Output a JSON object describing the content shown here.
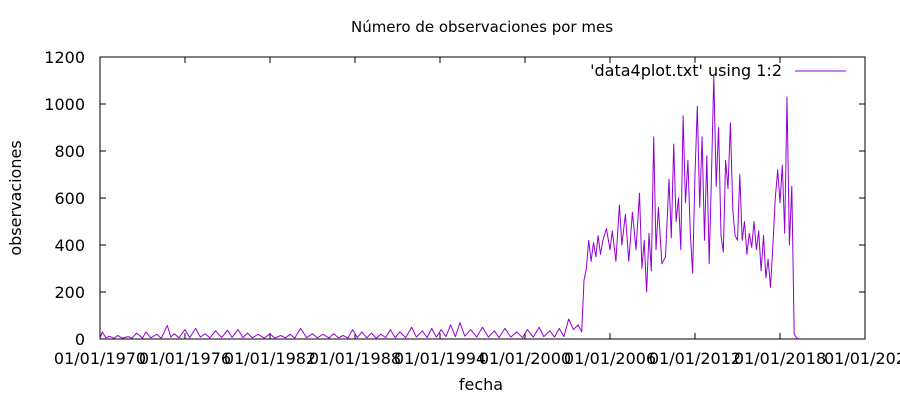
{
  "chart_data": {
    "type": "line",
    "title": "Número de observaciones por mes",
    "xlabel": "fecha",
    "ylabel": "observaciones",
    "x_type": "date",
    "xlim": [
      "1970-01-01",
      "2024-01-01"
    ],
    "ylim": [
      0,
      1200
    ],
    "xticks": [
      "01/01/1970",
      "01/01/1976",
      "01/01/1982",
      "01/01/1988",
      "01/01/1994",
      "01/01/2000",
      "01/01/2006",
      "01/01/2012",
      "01/01/2018",
      "01/01/202"
    ],
    "yticks": [
      "0",
      "200",
      "400",
      "600",
      "800",
      "1000",
      "1200"
    ],
    "legend_position": "top-right",
    "grid": false,
    "series_color": "#9400d3",
    "series": [
      {
        "name": "'data4plot.txt' using 1:2",
        "points": [
          [
            "1970-01-01",
            2
          ],
          [
            "1970-03-01",
            30
          ],
          [
            "1970-06-01",
            5
          ],
          [
            "1970-09-01",
            12
          ],
          [
            "1971-01-01",
            3
          ],
          [
            "1971-04-01",
            15
          ],
          [
            "1971-08-01",
            4
          ],
          [
            "1972-01-01",
            10
          ],
          [
            "1972-04-01",
            3
          ],
          [
            "1972-08-01",
            25
          ],
          [
            "1973-01-01",
            4
          ],
          [
            "1973-04-01",
            30
          ],
          [
            "1973-08-01",
            5
          ],
          [
            "1974-01-01",
            20
          ],
          [
            "1974-05-01",
            3
          ],
          [
            "1974-10-01",
            58
          ],
          [
            "1975-01-01",
            8
          ],
          [
            "1975-04-01",
            22
          ],
          [
            "1975-08-01",
            5
          ],
          [
            "1976-01-01",
            40
          ],
          [
            "1976-05-01",
            6
          ],
          [
            "1976-10-01",
            45
          ],
          [
            "1977-02-01",
            8
          ],
          [
            "1977-06-01",
            22
          ],
          [
            "1977-10-01",
            5
          ],
          [
            "1978-03-01",
            35
          ],
          [
            "1978-08-01",
            6
          ],
          [
            "1979-01-01",
            38
          ],
          [
            "1979-05-01",
            7
          ],
          [
            "1979-10-01",
            40
          ],
          [
            "1980-02-01",
            6
          ],
          [
            "1980-06-01",
            25
          ],
          [
            "1980-10-01",
            5
          ],
          [
            "1981-03-01",
            20
          ],
          [
            "1981-08-01",
            4
          ],
          [
            "1982-01-01",
            22
          ],
          [
            "1982-05-01",
            4
          ],
          [
            "1982-10-01",
            15
          ],
          [
            "1983-02-01",
            5
          ],
          [
            "1983-06-01",
            20
          ],
          [
            "1983-10-01",
            4
          ],
          [
            "1984-03-01",
            45
          ],
          [
            "1984-08-01",
            6
          ],
          [
            "1985-01-01",
            22
          ],
          [
            "1985-05-01",
            5
          ],
          [
            "1985-10-01",
            20
          ],
          [
            "1986-03-01",
            4
          ],
          [
            "1986-07-01",
            22
          ],
          [
            "1986-11-01",
            5
          ],
          [
            "1987-03-01",
            15
          ],
          [
            "1987-07-01",
            4
          ],
          [
            "1987-11-01",
            40
          ],
          [
            "1988-03-01",
            6
          ],
          [
            "1988-07-01",
            30
          ],
          [
            "1988-11-01",
            5
          ],
          [
            "1989-03-01",
            25
          ],
          [
            "1989-07-01",
            4
          ],
          [
            "1989-11-01",
            20
          ],
          [
            "1990-03-01",
            6
          ],
          [
            "1990-07-01",
            40
          ],
          [
            "1990-11-01",
            5
          ],
          [
            "1991-03-01",
            30
          ],
          [
            "1991-08-01",
            6
          ],
          [
            "1992-01-01",
            50
          ],
          [
            "1992-05-01",
            8
          ],
          [
            "1992-10-01",
            35
          ],
          [
            "1993-02-01",
            6
          ],
          [
            "1993-06-01",
            45
          ],
          [
            "1993-10-01",
            8
          ],
          [
            "1994-02-01",
            40
          ],
          [
            "1994-06-01",
            10
          ],
          [
            "1994-10-01",
            60
          ],
          [
            "1995-02-01",
            10
          ],
          [
            "1995-06-01",
            70
          ],
          [
            "1995-10-01",
            12
          ],
          [
            "1996-03-01",
            40
          ],
          [
            "1996-08-01",
            8
          ],
          [
            "1997-01-01",
            50
          ],
          [
            "1997-06-01",
            8
          ],
          [
            "1997-11-01",
            35
          ],
          [
            "1998-03-01",
            6
          ],
          [
            "1998-08-01",
            45
          ],
          [
            "1999-01-01",
            8
          ],
          [
            "1999-06-01",
            30
          ],
          [
            "1999-11-01",
            5
          ],
          [
            "2000-03-01",
            40
          ],
          [
            "2000-08-01",
            8
          ],
          [
            "2001-01-01",
            50
          ],
          [
            "2001-05-01",
            10
          ],
          [
            "2001-10-01",
            35
          ],
          [
            "2002-02-01",
            8
          ],
          [
            "2002-06-01",
            45
          ],
          [
            "2002-10-01",
            10
          ],
          [
            "2003-02-01",
            85
          ],
          [
            "2003-06-01",
            40
          ],
          [
            "2003-10-01",
            60
          ],
          [
            "2004-01-01",
            30
          ],
          [
            "2004-03-01",
            250
          ],
          [
            "2004-05-01",
            300
          ],
          [
            "2004-07-01",
            420
          ],
          [
            "2004-09-01",
            330
          ],
          [
            "2004-11-01",
            410
          ],
          [
            "2005-01-01",
            350
          ],
          [
            "2005-03-01",
            440
          ],
          [
            "2005-05-01",
            360
          ],
          [
            "2005-07-01",
            420
          ],
          [
            "2005-10-01",
            470
          ],
          [
            "2006-01-01",
            380
          ],
          [
            "2006-03-01",
            460
          ],
          [
            "2006-06-01",
            330
          ],
          [
            "2006-09-01",
            570
          ],
          [
            "2006-11-01",
            400
          ],
          [
            "2007-02-01",
            530
          ],
          [
            "2007-05-01",
            330
          ],
          [
            "2007-08-01",
            540
          ],
          [
            "2007-11-01",
            380
          ],
          [
            "2008-02-01",
            620
          ],
          [
            "2008-04-01",
            300
          ],
          [
            "2008-06-01",
            420
          ],
          [
            "2008-08-01",
            200
          ],
          [
            "2008-10-01",
            450
          ],
          [
            "2008-12-01",
            290
          ],
          [
            "2009-02-01",
            860
          ],
          [
            "2009-04-01",
            380
          ],
          [
            "2009-06-01",
            560
          ],
          [
            "2009-09-01",
            320
          ],
          [
            "2009-12-01",
            350
          ],
          [
            "2010-03-01",
            680
          ],
          [
            "2010-05-01",
            430
          ],
          [
            "2010-07-01",
            830
          ],
          [
            "2010-09-01",
            500
          ],
          [
            "2010-11-01",
            600
          ],
          [
            "2011-01-01",
            380
          ],
          [
            "2011-03-01",
            950
          ],
          [
            "2011-05-01",
            580
          ],
          [
            "2011-07-01",
            760
          ],
          [
            "2011-09-01",
            450
          ],
          [
            "2011-11-01",
            280
          ],
          [
            "2012-01-01",
            700
          ],
          [
            "2012-03-01",
            990
          ],
          [
            "2012-05-01",
            560
          ],
          [
            "2012-07-01",
            860
          ],
          [
            "2012-09-01",
            420
          ],
          [
            "2012-11-01",
            780
          ],
          [
            "2013-01-01",
            320
          ],
          [
            "2013-03-01",
            700
          ],
          [
            "2013-05-01",
            1120
          ],
          [
            "2013-07-01",
            650
          ],
          [
            "2013-09-01",
            900
          ],
          [
            "2013-11-01",
            440
          ],
          [
            "2014-01-01",
            370
          ],
          [
            "2014-03-01",
            760
          ],
          [
            "2014-05-01",
            640
          ],
          [
            "2014-07-01",
            920
          ],
          [
            "2014-09-01",
            550
          ],
          [
            "2014-11-01",
            440
          ],
          [
            "2015-01-01",
            420
          ],
          [
            "2015-03-01",
            700
          ],
          [
            "2015-05-01",
            420
          ],
          [
            "2015-07-01",
            500
          ],
          [
            "2015-09-01",
            360
          ],
          [
            "2015-11-01",
            450
          ],
          [
            "2016-01-01",
            390
          ],
          [
            "2016-03-01",
            500
          ],
          [
            "2016-05-01",
            380
          ],
          [
            "2016-07-01",
            460
          ],
          [
            "2016-09-01",
            290
          ],
          [
            "2016-11-01",
            440
          ],
          [
            "2017-01-01",
            260
          ],
          [
            "2017-03-01",
            340
          ],
          [
            "2017-05-01",
            220
          ],
          [
            "2017-07-01",
            400
          ],
          [
            "2017-09-01",
            600
          ],
          [
            "2017-11-01",
            720
          ],
          [
            "2018-01-01",
            580
          ],
          [
            "2018-03-01",
            740
          ],
          [
            "2018-05-01",
            450
          ],
          [
            "2018-07-01",
            1030
          ],
          [
            "2018-09-01",
            400
          ],
          [
            "2018-11-01",
            650
          ],
          [
            "2019-01-01",
            20
          ],
          [
            "2019-03-01",
            5
          ],
          [
            "2019-05-01",
            0
          ]
        ]
      }
    ]
  }
}
